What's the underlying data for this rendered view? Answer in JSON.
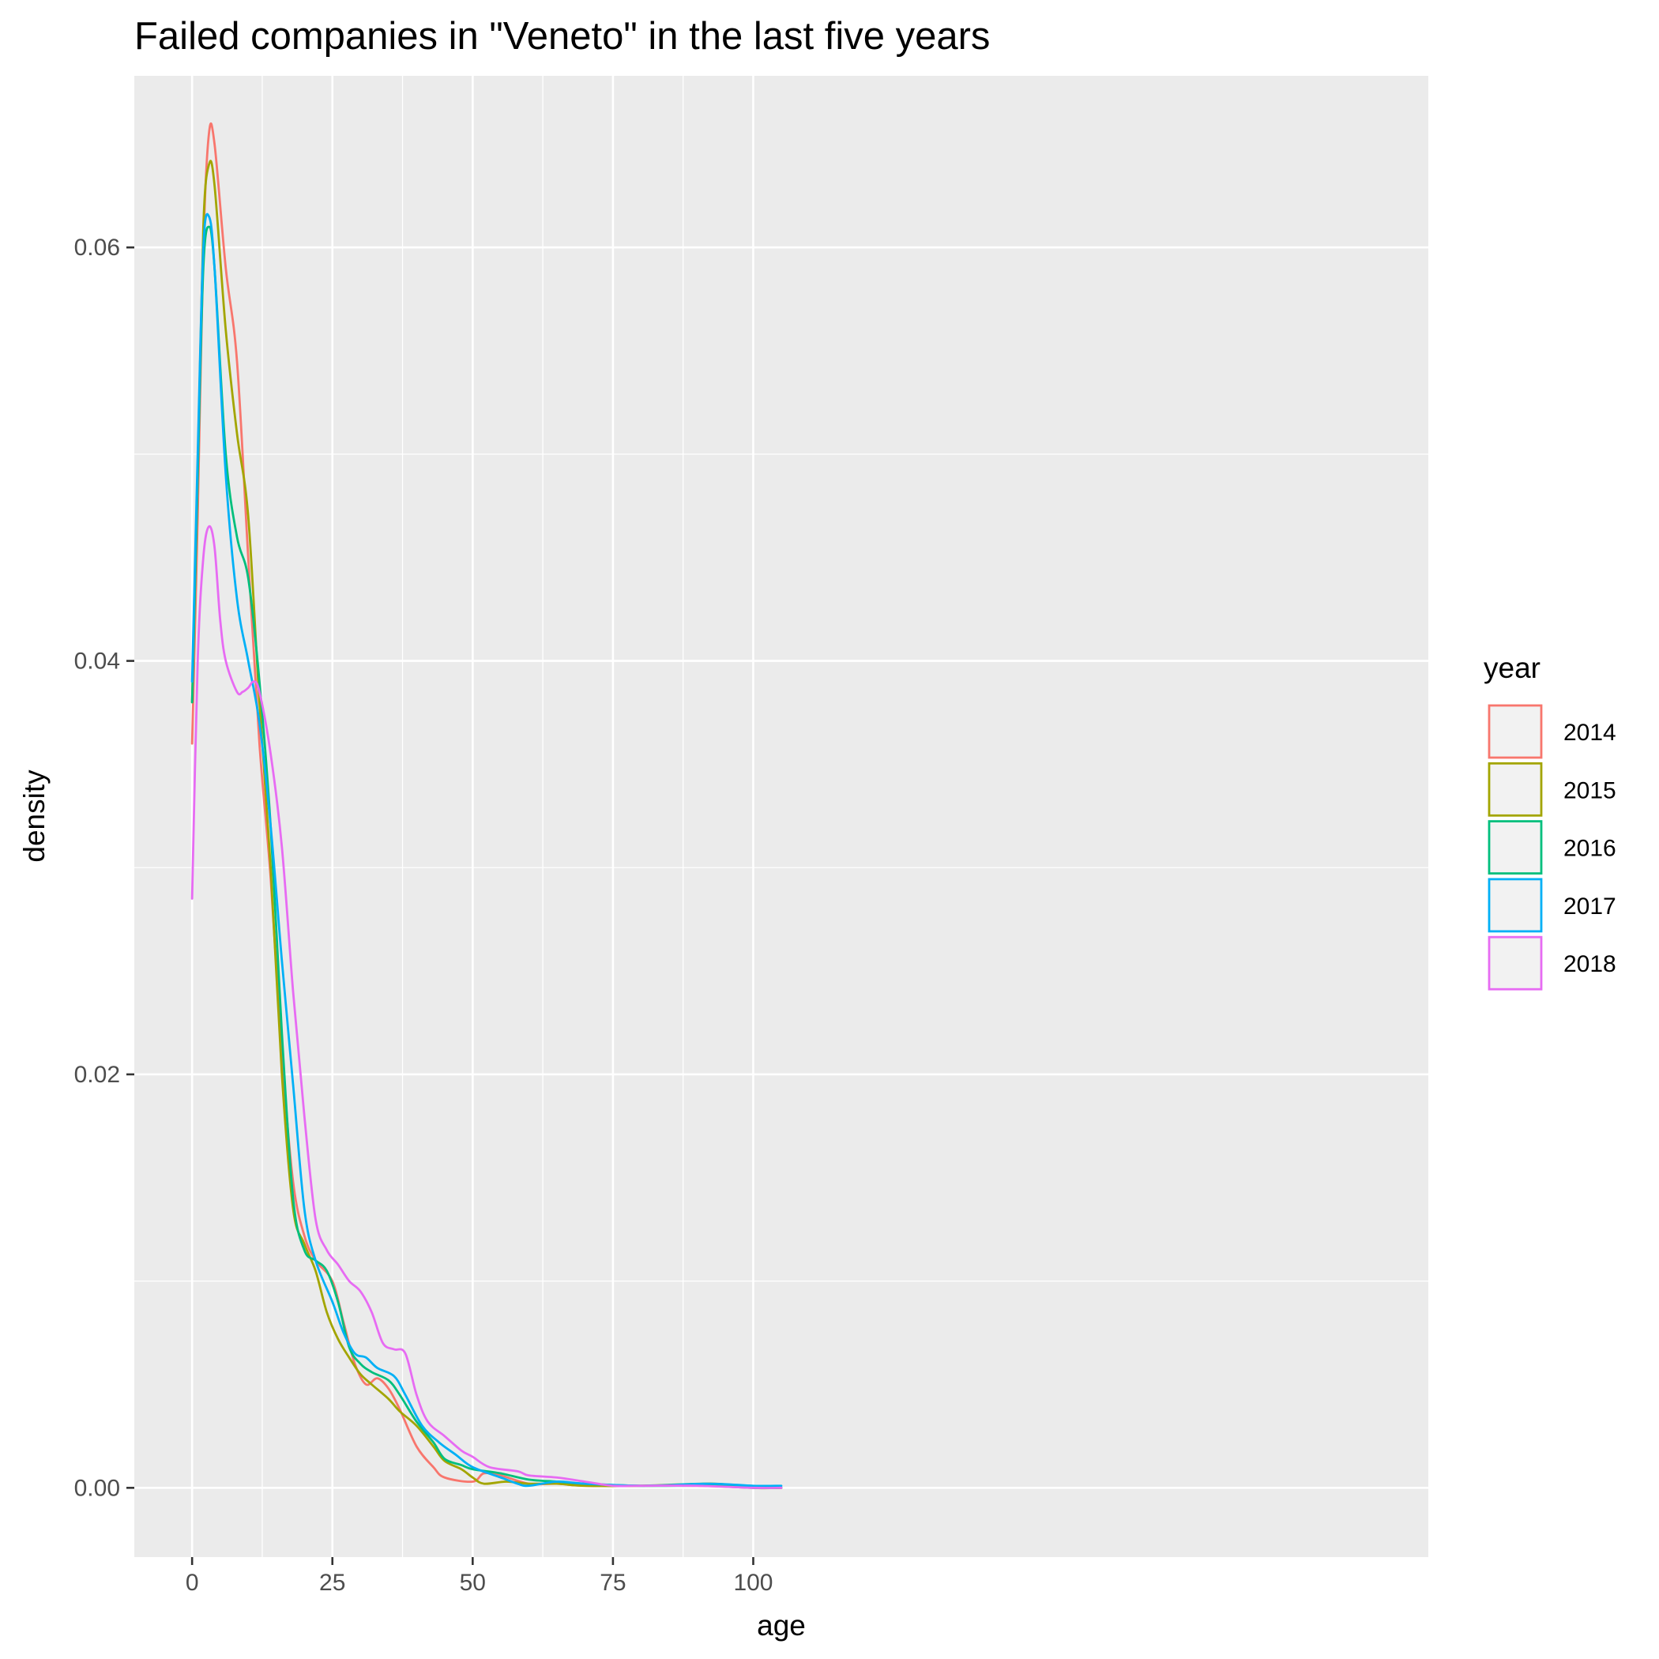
{
  "chart_data": {
    "type": "line",
    "title": "Failed companies in \"Veneto\" in the last five years",
    "xlabel": "age",
    "ylabel": "density",
    "xlim": [
      -10.3,
      220.3
    ],
    "ylim": [
      -0.00335,
      0.0683
    ],
    "x_ticks": [
      0,
      25,
      50,
      75,
      100
    ],
    "x_tick_labels": [
      "0",
      "25",
      "50",
      "75",
      "100"
    ],
    "y_ticks": [
      0.0,
      0.02,
      0.04,
      0.06
    ],
    "y_tick_labels": [
      "0.00",
      "0.02",
      "0.04",
      "0.06"
    ],
    "grid": true,
    "legend": {
      "title": "year",
      "position": "right"
    },
    "series": [
      {
        "name": "2014",
        "color": "#F8766D",
        "points": [
          [
            0,
            0.036
          ],
          [
            1,
            0.047
          ],
          [
            2,
            0.06
          ],
          [
            3,
            0.0655
          ],
          [
            4,
            0.065
          ],
          [
            6,
            0.059
          ],
          [
            8,
            0.0545
          ],
          [
            10,
            0.045
          ],
          [
            12,
            0.036
          ],
          [
            14,
            0.0295
          ],
          [
            16,
            0.021
          ],
          [
            18,
            0.0148
          ],
          [
            20,
            0.0122
          ],
          [
            22,
            0.011
          ],
          [
            25,
            0.01
          ],
          [
            27,
            0.008
          ],
          [
            29,
            0.006
          ],
          [
            31,
            0.005
          ],
          [
            33,
            0.0053
          ],
          [
            35,
            0.0048
          ],
          [
            37,
            0.0038
          ],
          [
            40,
            0.002
          ],
          [
            43,
            0.001
          ],
          [
            45,
            0.0005
          ],
          [
            50,
            0.0003
          ],
          [
            52,
            0.0007
          ],
          [
            55,
            0.0006
          ],
          [
            60,
            0.0002
          ],
          [
            65,
            0.0002
          ],
          [
            70,
            0.0001
          ],
          [
            80,
            0.0001
          ],
          [
            90,
            0.0001
          ],
          [
            100,
            0.0
          ],
          [
            105,
            0.0
          ]
        ]
      },
      {
        "name": "2015",
        "color": "#A3A500",
        "points": [
          [
            0,
            0.038
          ],
          [
            1,
            0.049
          ],
          [
            2,
            0.061
          ],
          [
            3,
            0.064
          ],
          [
            4,
            0.063
          ],
          [
            6,
            0.056
          ],
          [
            8,
            0.051
          ],
          [
            10,
            0.047
          ],
          [
            12,
            0.038
          ],
          [
            14,
            0.03
          ],
          [
            16,
            0.02
          ],
          [
            18,
            0.0135
          ],
          [
            20,
            0.0118
          ],
          [
            22,
            0.0105
          ],
          [
            24,
            0.0085
          ],
          [
            26,
            0.0072
          ],
          [
            28,
            0.0063
          ],
          [
            30,
            0.0055
          ],
          [
            32,
            0.005
          ],
          [
            35,
            0.0043
          ],
          [
            37,
            0.0037
          ],
          [
            40,
            0.003
          ],
          [
            43,
            0.002
          ],
          [
            45,
            0.0013
          ],
          [
            48,
            0.0009
          ],
          [
            50,
            0.0005
          ],
          [
            52,
            0.0002
          ],
          [
            56,
            0.0003
          ],
          [
            60,
            0.0002
          ],
          [
            65,
            0.0002
          ],
          [
            70,
            0.0001
          ],
          [
            80,
            0.0001
          ],
          [
            93,
            0.0002
          ],
          [
            100,
            0.0
          ],
          [
            105,
            0.0
          ]
        ]
      },
      {
        "name": "2016",
        "color": "#00BF7D",
        "points": [
          [
            0,
            0.038
          ],
          [
            1,
            0.049
          ],
          [
            2,
            0.059
          ],
          [
            3,
            0.061
          ],
          [
            4,
            0.059
          ],
          [
            6,
            0.05
          ],
          [
            8,
            0.046
          ],
          [
            10,
            0.044
          ],
          [
            12,
            0.039
          ],
          [
            14,
            0.032
          ],
          [
            16,
            0.022
          ],
          [
            18,
            0.014
          ],
          [
            20,
            0.0115
          ],
          [
            22,
            0.011
          ],
          [
            24,
            0.0105
          ],
          [
            26,
            0.009
          ],
          [
            28,
            0.0068
          ],
          [
            30,
            0.006
          ],
          [
            32,
            0.0056
          ],
          [
            35,
            0.0052
          ],
          [
            37,
            0.0045
          ],
          [
            40,
            0.0032
          ],
          [
            43,
            0.0022
          ],
          [
            45,
            0.0014
          ],
          [
            48,
            0.0011
          ],
          [
            50,
            0.0009
          ],
          [
            55,
            0.0007
          ],
          [
            60,
            0.0004
          ],
          [
            65,
            0.0003
          ],
          [
            70,
            0.0002
          ],
          [
            80,
            0.0001
          ],
          [
            93,
            0.0001
          ],
          [
            100,
            0.0
          ],
          [
            105,
            0.0
          ]
        ]
      },
      {
        "name": "2017",
        "color": "#00B0F6",
        "points": [
          [
            0,
            0.039
          ],
          [
            1,
            0.05
          ],
          [
            2,
            0.06
          ],
          [
            3,
            0.0615
          ],
          [
            4,
            0.059
          ],
          [
            6,
            0.049
          ],
          [
            8,
            0.043
          ],
          [
            10,
            0.04
          ],
          [
            12,
            0.037
          ],
          [
            14,
            0.032
          ],
          [
            16,
            0.0255
          ],
          [
            18,
            0.0195
          ],
          [
            20,
            0.0135
          ],
          [
            22,
            0.011
          ],
          [
            25,
            0.009
          ],
          [
            27,
            0.0075
          ],
          [
            29,
            0.0065
          ],
          [
            31,
            0.0063
          ],
          [
            33,
            0.0058
          ],
          [
            36,
            0.0054
          ],
          [
            38,
            0.0045
          ],
          [
            41,
            0.003
          ],
          [
            44,
            0.0022
          ],
          [
            47,
            0.0016
          ],
          [
            50,
            0.001
          ],
          [
            55,
            0.0005
          ],
          [
            58,
            0.0002
          ],
          [
            60,
            0.0001
          ],
          [
            65,
            0.0003
          ],
          [
            70,
            0.0002
          ],
          [
            80,
            0.0001
          ],
          [
            92,
            0.0002
          ],
          [
            100,
            0.0001
          ],
          [
            105,
            0.0001
          ]
        ]
      },
      {
        "name": "2018",
        "color": "#E76BF3",
        "points": [
          [
            0,
            0.0285
          ],
          [
            1,
            0.04
          ],
          [
            2,
            0.045
          ],
          [
            3,
            0.0465
          ],
          [
            4,
            0.0455
          ],
          [
            5,
            0.042
          ],
          [
            6,
            0.04
          ],
          [
            8,
            0.0385
          ],
          [
            9,
            0.0385
          ],
          [
            10,
            0.0387
          ],
          [
            11,
            0.039
          ],
          [
            12,
            0.0385
          ],
          [
            14,
            0.0355
          ],
          [
            16,
            0.031
          ],
          [
            18,
            0.024
          ],
          [
            20,
            0.018
          ],
          [
            22,
            0.013
          ],
          [
            24,
            0.0115
          ],
          [
            26,
            0.0108
          ],
          [
            28,
            0.01
          ],
          [
            30,
            0.0095
          ],
          [
            32,
            0.0085
          ],
          [
            34,
            0.007
          ],
          [
            36,
            0.0067
          ],
          [
            38,
            0.0065
          ],
          [
            40,
            0.0045
          ],
          [
            42,
            0.0032
          ],
          [
            45,
            0.0025
          ],
          [
            48,
            0.0018
          ],
          [
            50,
            0.0015
          ],
          [
            53,
            0.001
          ],
          [
            58,
            0.0008
          ],
          [
            60,
            0.0006
          ],
          [
            65,
            0.0005
          ],
          [
            70,
            0.0003
          ],
          [
            75,
            0.0001
          ],
          [
            80,
            0.0001
          ],
          [
            90,
            0.0001
          ],
          [
            100,
            0.0
          ],
          [
            105,
            0.0
          ]
        ]
      }
    ]
  }
}
